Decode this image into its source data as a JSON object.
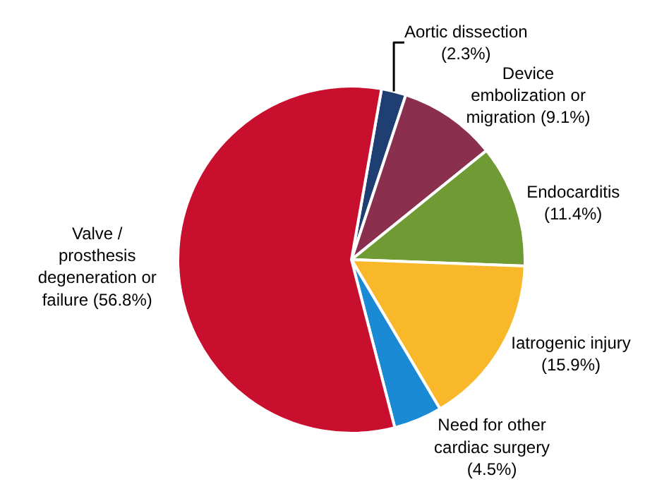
{
  "chart_data": {
    "type": "pie",
    "categories": [
      "Aortic dissection",
      "Device embolization or migration",
      "Endocarditis",
      "Iatrogenic injury",
      "Need for other cardiac surgery",
      "Valve / prosthesis degeneration or failure"
    ],
    "values": [
      2.3,
      9.1,
      11.4,
      15.9,
      4.5,
      56.8
    ],
    "value_labels": [
      "(2.3%)",
      "(9.1%)",
      "(11.4%)",
      "(15.9%)",
      "(4.5%)",
      "(56.8%)"
    ],
    "colors": [
      "#1f3f73",
      "#8b2f4f",
      "#6f9a34",
      "#f9b82a",
      "#1a8ad4",
      "#c8102e"
    ],
    "legend": false
  }
}
